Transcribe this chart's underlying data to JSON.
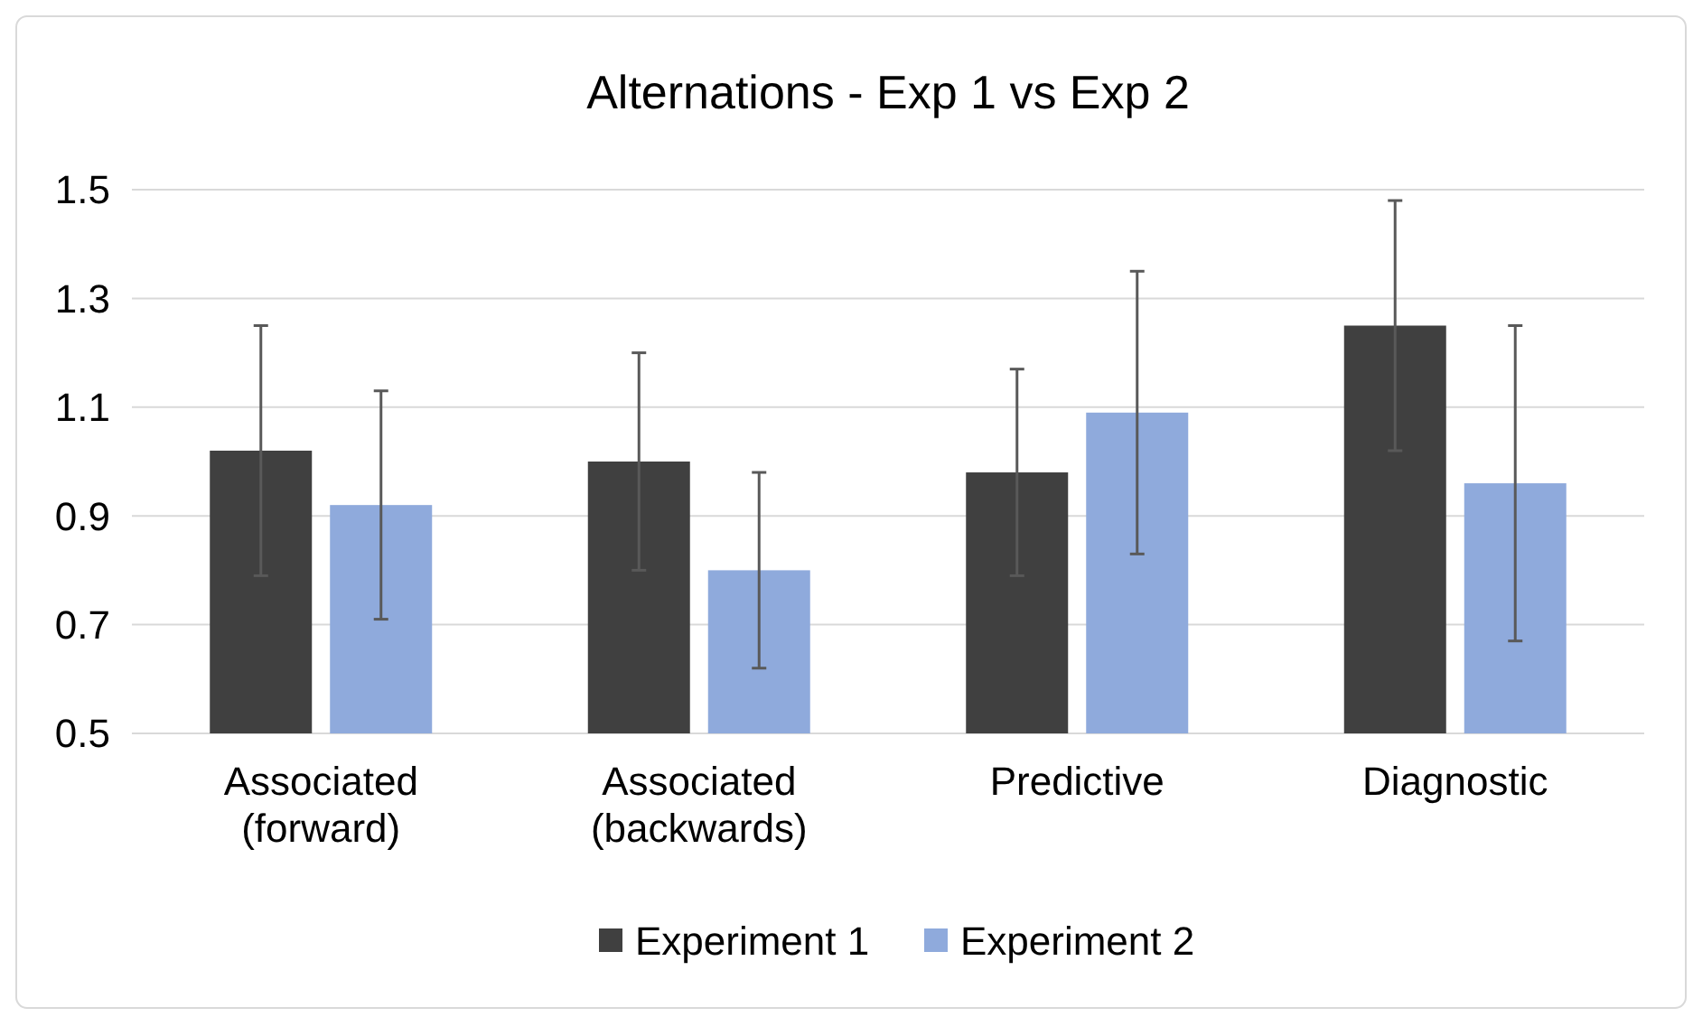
{
  "chart_data": {
    "type": "bar",
    "title": "Alternations - Exp 1 vs Exp 2",
    "categories": [
      "Associated (forward)",
      "Associated (backwards)",
      "Predictive",
      "Diagnostic"
    ],
    "series": [
      {
        "name": "Experiment 1",
        "color": "#404040",
        "values": [
          1.02,
          1.0,
          0.98,
          1.25
        ],
        "errors": [
          0.23,
          0.2,
          0.19,
          0.23
        ]
      },
      {
        "name": "Experiment 2",
        "color": "#8faadc",
        "values": [
          0.92,
          0.8,
          1.09,
          0.96
        ],
        "errors": [
          0.21,
          0.18,
          0.26,
          0.29
        ]
      }
    ],
    "ylim": [
      0.5,
      1.5
    ],
    "yticks": [
      0.5,
      0.7,
      0.9,
      1.1,
      1.3,
      1.5
    ],
    "grid": "y",
    "legend": "bottom"
  }
}
